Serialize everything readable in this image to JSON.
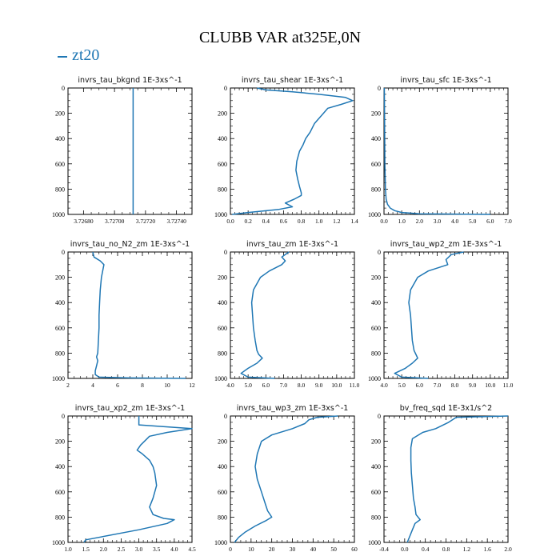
{
  "figure": {
    "title": "CLUBB VAR at325E,0N",
    "legend": {
      "label": "zt20",
      "color": "#1f77b4"
    }
  },
  "chart_data": [
    {
      "type": "line",
      "title": "invrs_tau_bkgnd",
      "units": "1E-3xs^-1",
      "xlim": [
        3.7267,
        3.7275
      ],
      "xticks": [
        "3.72680",
        "3.72700",
        "3.72720",
        "3.72740"
      ],
      "ylim": [
        1000,
        0
      ],
      "yticks": [
        "0",
        "200",
        "400",
        "600",
        "800",
        "1000"
      ],
      "series": [
        {
          "name": "zt20",
          "x": [
            3.72712,
            3.72712
          ],
          "y": [
            0,
            1000
          ]
        }
      ]
    },
    {
      "type": "line",
      "title": "invrs_tau_shear",
      "units": "1E-3xs^-1",
      "xlim": [
        0.0,
        1.4
      ],
      "xticks": [
        "0.0",
        "0.2",
        "0.4",
        "0.6",
        "0.8",
        "1.0",
        "1.2",
        "1.4"
      ],
      "ylim": [
        1000,
        0
      ],
      "yticks": [
        "0",
        "200",
        "400",
        "600",
        "800",
        "1000"
      ],
      "series": [
        {
          "name": "zt20",
          "x": [
            0.3,
            0.4,
            0.7,
            1.0,
            1.3,
            1.38,
            1.25,
            1.1,
            1.05,
            0.95,
            0.9,
            0.85,
            0.82,
            0.78,
            0.75,
            0.74,
            0.76,
            0.78,
            0.8,
            0.8,
            0.72,
            0.62,
            0.7,
            0.55,
            0.2,
            0.02
          ],
          "y": [
            0,
            15,
            30,
            50,
            75,
            100,
            130,
            160,
            200,
            280,
            350,
            400,
            450,
            500,
            580,
            650,
            720,
            780,
            830,
            850,
            880,
            910,
            940,
            960,
            985,
            1000
          ]
        }
      ]
    },
    {
      "type": "line",
      "title": "invrs_tau_sfc",
      "units": "1E-3xs^-1",
      "xlim": [
        0.0,
        7.0
      ],
      "xticks": [
        "0.0",
        "1.0",
        "2.0",
        "3.0",
        "4.0",
        "5.0",
        "6.0",
        "7.0"
      ],
      "ylim": [
        1000,
        0
      ],
      "yticks": [
        "0",
        "200",
        "400",
        "600",
        "800",
        "1000"
      ],
      "series": [
        {
          "name": "zt20",
          "x": [
            0.02,
            0.03,
            0.04,
            0.05,
            0.08,
            0.12,
            0.2,
            0.35,
            0.6,
            1.0,
            2.0,
            6.0
          ],
          "y": [
            0,
            200,
            400,
            600,
            800,
            880,
            920,
            950,
            970,
            985,
            995,
            1000
          ]
        }
      ]
    },
    {
      "type": "line",
      "title": "invrs_tau_no_N2_zm",
      "units": "1E-3xs^-1",
      "xlim": [
        2,
        12
      ],
      "xticks": [
        "2",
        "4",
        "6",
        "8",
        "10",
        "12"
      ],
      "ylim": [
        1000,
        0
      ],
      "yticks": [
        "0",
        "200",
        "400",
        "600",
        "800",
        "1000"
      ],
      "series": [
        {
          "name": "zt20",
          "x": [
            4.0,
            4.1,
            4.6,
            4.9,
            4.7,
            4.6,
            4.55,
            4.5,
            4.5,
            4.45,
            4.4,
            4.3,
            4.4,
            4.3,
            4.2,
            4.2,
            4.5,
            7.0,
            11.5
          ],
          "y": [
            0,
            40,
            70,
            100,
            200,
            300,
            400,
            500,
            600,
            700,
            800,
            830,
            860,
            900,
            940,
            970,
            990,
            996,
            1000
          ]
        }
      ]
    },
    {
      "type": "line",
      "title": "invrs_tau_zm",
      "units": "1E-3xs^-1",
      "xlim": [
        4.0,
        11.0
      ],
      "xticks": [
        "4.0",
        "5.0",
        "6.0",
        "7.0",
        "8.0",
        "9.0",
        "10.0",
        "11.0"
      ],
      "ylim": [
        1000,
        0
      ],
      "yticks": [
        "0",
        "200",
        "400",
        "600",
        "800",
        "1000"
      ],
      "series": [
        {
          "name": "zt20",
          "x": [
            7.3,
            6.9,
            7.1,
            6.9,
            6.2,
            5.7,
            5.3,
            5.2,
            5.25,
            5.3,
            5.4,
            5.5,
            5.6,
            5.8,
            5.5,
            5.0,
            4.6,
            5.0,
            6.5
          ],
          "y": [
            0,
            40,
            70,
            100,
            150,
            200,
            300,
            400,
            500,
            600,
            700,
            780,
            810,
            840,
            880,
            920,
            960,
            990,
            1000
          ]
        }
      ]
    },
    {
      "type": "line",
      "title": "invrs_tau_wp2_zm",
      "units": "1E-3xs^-1",
      "xlim": [
        4.0,
        11.0
      ],
      "xticks": [
        "4.0",
        "5.0",
        "6.0",
        "7.0",
        "8.0",
        "9.0",
        "10.0",
        "11.0"
      ],
      "ylim": [
        1000,
        0
      ],
      "yticks": [
        "0",
        "200",
        "400",
        "600",
        "800",
        "1000"
      ],
      "series": [
        {
          "name": "zt20",
          "x": [
            8.5,
            7.8,
            7.5,
            7.6,
            6.5,
            5.9,
            5.5,
            5.4,
            5.5,
            5.55,
            5.6,
            5.7,
            5.8,
            5.9,
            5.6,
            5.2,
            4.6,
            5.0,
            6.5
          ],
          "y": [
            0,
            20,
            60,
            100,
            150,
            200,
            300,
            400,
            500,
            600,
            700,
            780,
            810,
            840,
            880,
            920,
            960,
            990,
            1000
          ]
        }
      ]
    },
    {
      "type": "line",
      "title": "invrs_tau_xp2_zm",
      "units": "1E-3xs^-1",
      "xlim": [
        1.0,
        4.5
      ],
      "xticks": [
        "1.0",
        "1.5",
        "2.0",
        "2.5",
        "3.0",
        "3.5",
        "4.0",
        "4.5"
      ],
      "ylim": [
        1000,
        0
      ],
      "yticks": [
        "0",
        "200",
        "400",
        "600",
        "800",
        "1000"
      ],
      "series": [
        {
          "name": "zt20",
          "x": [
            3.0,
            3.0,
            4.5,
            3.8,
            3.3,
            3.05,
            2.95,
            3.1,
            3.3,
            3.4,
            3.45,
            3.5,
            3.4,
            3.3,
            3.4,
            3.7,
            4.0,
            3.8,
            3.0,
            1.5,
            1.45
          ],
          "y": [
            0,
            70,
            100,
            130,
            160,
            230,
            270,
            300,
            350,
            400,
            450,
            550,
            650,
            720,
            780,
            810,
            820,
            850,
            900,
            980,
            1000
          ]
        }
      ]
    },
    {
      "type": "line",
      "title": "invrs_tau_wp3_zm",
      "units": "1E-3xs^-1",
      "xlim": [
        0,
        60
      ],
      "xticks": [
        "0",
        "10",
        "20",
        "30",
        "40",
        "50",
        "60"
      ],
      "ylim": [
        1000,
        0
      ],
      "yticks": [
        "0",
        "200",
        "400",
        "600",
        "800",
        "1000"
      ],
      "series": [
        {
          "name": "zt20",
          "x": [
            52,
            42,
            38,
            36,
            30,
            20,
            15,
            13,
            12,
            13,
            15,
            17,
            18,
            20,
            17,
            12,
            7,
            4,
            2
          ],
          "y": [
            0,
            10,
            30,
            60,
            100,
            150,
            200,
            300,
            400,
            500,
            600,
            700,
            750,
            800,
            830,
            870,
            920,
            960,
            1000
          ]
        }
      ]
    },
    {
      "type": "line",
      "title": "bv_freq_sqd",
      "units": "1E-3x1/s^2",
      "xlim": [
        -0.4,
        2.0
      ],
      "xticks": [
        "-0.4",
        "0.0",
        "0.4",
        "0.8",
        "1.2",
        "1.6",
        "2.0"
      ],
      "ylim": [
        1000,
        0
      ],
      "yticks": [
        "0",
        "200",
        "400",
        "600",
        "800",
        "1000"
      ],
      "series": [
        {
          "name": "zt20",
          "x": [
            2.0,
            1.0,
            0.85,
            0.6,
            0.35,
            0.15,
            0.12,
            0.12,
            0.13,
            0.15,
            0.17,
            0.2,
            0.22,
            0.3,
            0.2,
            0.15,
            0.1,
            0.05
          ],
          "y": [
            0,
            10,
            50,
            100,
            130,
            180,
            250,
            350,
            450,
            550,
            650,
            720,
            780,
            820,
            850,
            900,
            950,
            1000
          ]
        }
      ]
    }
  ]
}
